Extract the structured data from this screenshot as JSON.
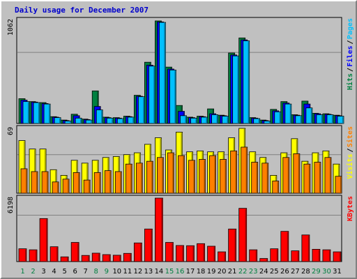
{
  "title": "Daily usage for December 2007",
  "colors": {
    "hits": "#008040",
    "files": "#0000ff",
    "pages": "#00c0ff",
    "visits": "#ffff00",
    "sites": "#ff8000",
    "kbytes": "#ff0000",
    "weekend_day": "#008040",
    "weekday": "#000000"
  },
  "chart_data": [
    {
      "type": "bar",
      "panel": "top",
      "ymax_label": "1062",
      "ylim": [
        0,
        1062
      ],
      "legend": [
        {
          "name": "Pages",
          "color": "#00c0ff"
        },
        {
          "name": "Files",
          "color": "#0000ff"
        },
        {
          "name": "Hits",
          "color": "#008040"
        }
      ],
      "categories": [
        "1",
        "2",
        "3",
        "4",
        "5",
        "6",
        "7",
        "8",
        "9",
        "10",
        "11",
        "12",
        "13",
        "14",
        "15",
        "16",
        "17",
        "18",
        "19",
        "20",
        "21",
        "22",
        "23",
        "24",
        "25",
        "26",
        "27",
        "28",
        "29",
        "30",
        "31"
      ],
      "series": [
        {
          "name": "Hits",
          "values": [
            255,
            225,
            215,
            70,
            35,
            95,
            45,
            335,
            65,
            60,
            75,
            290,
            630,
            1055,
            580,
            185,
            65,
            75,
            150,
            85,
            725,
            880,
            60,
            35,
            145,
            225,
            90,
            230,
            105,
            100,
            85
          ]
        },
        {
          "name": "Files",
          "values": [
            240,
            220,
            205,
            65,
            30,
            80,
            40,
            175,
            60,
            55,
            70,
            280,
            600,
            1045,
            560,
            125,
            60,
            70,
            100,
            80,
            705,
            860,
            55,
            30,
            130,
            210,
            85,
            200,
            100,
            95,
            80
          ]
        },
        {
          "name": "Pages",
          "values": [
            225,
            215,
            200,
            60,
            25,
            55,
            35,
            140,
            55,
            50,
            65,
            275,
            590,
            1040,
            550,
            80,
            55,
            65,
            90,
            75,
            695,
            850,
            50,
            25,
            120,
            200,
            80,
            160,
            90,
            90,
            75
          ]
        }
      ]
    },
    {
      "type": "bar",
      "panel": "middle",
      "ymax_label": "69",
      "ylim": [
        0,
        69
      ],
      "legend": [
        {
          "name": "Sites",
          "color": "#ff8000"
        },
        {
          "name": "Visits",
          "color": "#ffff00"
        }
      ],
      "categories": [
        "1",
        "2",
        "3",
        "4",
        "5",
        "6",
        "7",
        "8",
        "9",
        "10",
        "11",
        "12",
        "13",
        "14",
        "15",
        "16",
        "17",
        "18",
        "19",
        "20",
        "21",
        "22",
        "23",
        "24",
        "25",
        "26",
        "27",
        "28",
        "29",
        "30",
        "31"
      ],
      "series": [
        {
          "name": "Visits",
          "values": [
            56,
            47,
            47,
            25,
            19,
            35,
            32,
            35,
            38,
            39,
            41,
            43,
            52,
            59,
            46,
            65,
            44,
            45,
            44,
            44,
            59,
            69,
            44,
            38,
            19,
            43,
            58,
            34,
            43,
            45,
            31
          ]
        },
        {
          "name": "Sites",
          "values": [
            26,
            23,
            23,
            12,
            15,
            22,
            14,
            22,
            24,
            23,
            31,
            32,
            34,
            38,
            43,
            40,
            35,
            36,
            40,
            36,
            45,
            49,
            33,
            32,
            13,
            38,
            42,
            31,
            33,
            38,
            18
          ]
        }
      ]
    },
    {
      "type": "bar",
      "panel": "bottom",
      "ymax_label": "6198",
      "ylim": [
        0,
        6198
      ],
      "legend": [
        {
          "name": "KBytes",
          "color": "#ff0000"
        }
      ],
      "categories": [
        "1",
        "2",
        "3",
        "4",
        "5",
        "6",
        "7",
        "8",
        "9",
        "10",
        "11",
        "12",
        "13",
        "14",
        "15",
        "16",
        "17",
        "18",
        "19",
        "20",
        "21",
        "22",
        "23",
        "24",
        "25",
        "26",
        "27",
        "28",
        "29",
        "30",
        "31"
      ],
      "series": [
        {
          "name": "KBytes",
          "values": [
            1250,
            1150,
            4200,
            1450,
            460,
            1870,
            600,
            820,
            680,
            620,
            800,
            1820,
            3180,
            6198,
            1870,
            1570,
            1550,
            1750,
            1500,
            950,
            3180,
            5200,
            1150,
            300,
            1250,
            2950,
            1050,
            2600,
            1200,
            1150,
            950
          ]
        }
      ]
    }
  ],
  "day_labels": [
    {
      "label": "1",
      "weekend": true
    },
    {
      "label": "2",
      "weekend": true
    },
    {
      "label": "3",
      "weekend": false
    },
    {
      "label": "4",
      "weekend": false
    },
    {
      "label": "5",
      "weekend": false
    },
    {
      "label": "6",
      "weekend": false
    },
    {
      "label": "7",
      "weekend": false
    },
    {
      "label": "8",
      "weekend": true
    },
    {
      "label": "9",
      "weekend": true
    },
    {
      "label": "10",
      "weekend": false
    },
    {
      "label": "11",
      "weekend": false
    },
    {
      "label": "12",
      "weekend": false
    },
    {
      "label": "13",
      "weekend": false
    },
    {
      "label": "14",
      "weekend": false
    },
    {
      "label": "15",
      "weekend": true
    },
    {
      "label": "16",
      "weekend": true
    },
    {
      "label": "17",
      "weekend": false
    },
    {
      "label": "18",
      "weekend": false
    },
    {
      "label": "19",
      "weekend": false
    },
    {
      "label": "20",
      "weekend": false
    },
    {
      "label": "21",
      "weekend": false
    },
    {
      "label": "22",
      "weekend": true
    },
    {
      "label": "23",
      "weekend": true
    },
    {
      "label": "24",
      "weekend": false
    },
    {
      "label": "25",
      "weekend": false
    },
    {
      "label": "26",
      "weekend": false
    },
    {
      "label": "27",
      "weekend": false
    },
    {
      "label": "28",
      "weekend": false
    },
    {
      "label": "29",
      "weekend": true
    },
    {
      "label": "30",
      "weekend": true
    },
    {
      "label": "31",
      "weekend": false
    }
  ]
}
